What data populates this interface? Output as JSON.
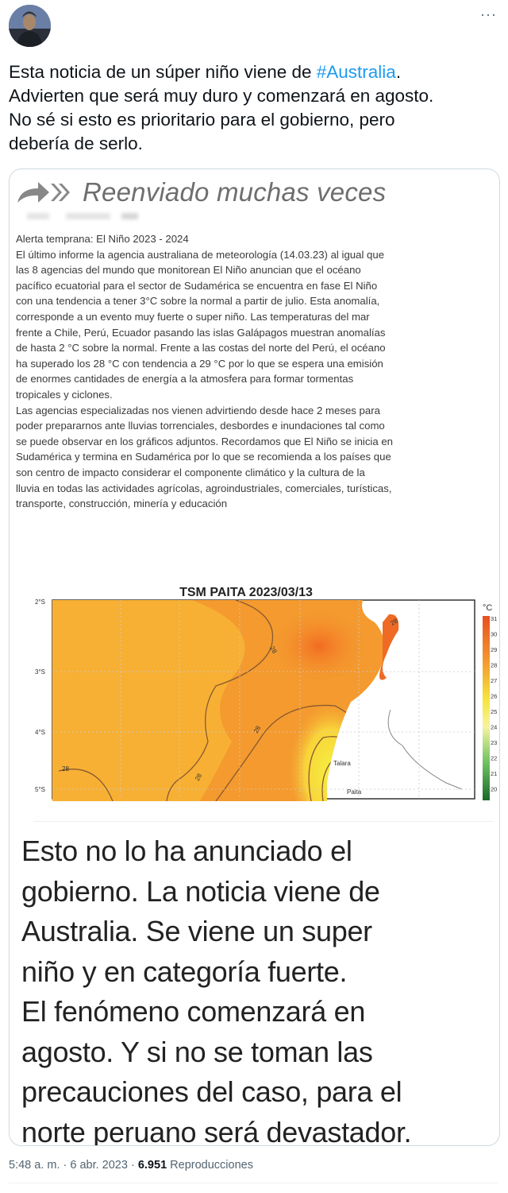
{
  "tweet": {
    "more_icon": "ellipsis-icon",
    "text_lines": [
      {
        "before": "Esta noticia de un súper niño viene de ",
        "hashtag": "#Australia",
        "after": "."
      },
      {
        "before": "Advierten que será muy duro y comenzará en agosto.",
        "hashtag": "",
        "after": ""
      },
      {
        "before": "No sé si esto es prioritario para el gobierno, pero",
        "hashtag": "",
        "after": ""
      },
      {
        "before": "debería de serlo.",
        "hashtag": "",
        "after": ""
      }
    ],
    "accent_color": "#1d9bf0"
  },
  "image": {
    "forwarded_icon": "forwarded-double-arrow-icon",
    "forwarded_label": "Reenviado muchas veces",
    "body_lines": [
      "Alerta temprana: El Niño 2023 - 2024",
      "El último informe la agencia australiana de meteorología (14.03.23) al igual que",
      "las 8 agencias del mundo que monitorean El Niño anuncian que el océano",
      "pacífico ecuatorial para el sector de Sudamérica se encuentra en fase El Niño",
      "con una tendencia a tener 3°C sobre la normal a partir de julio. Esta anomalía,",
      "corresponde a un evento muy fuerte o super niño. Las temperaturas del mar",
      "frente a Chile, Perú, Ecuador pasando las islas Galápagos muestran anomalías",
      "de hasta 2 °C sobre la normal. Frente a las costas del norte del Perú, el océano",
      "ha superado los 28 °C con tendencia a 29 °C por lo que se espera una emisión",
      "de enormes cantidades de energía a la atmosfera para formar tormentas",
      "tropicales y ciclones.",
      "Las agencias especializadas nos vienen advirtiendo desde hace 2 meses para",
      "poder prepararnos ante lluvias torrenciales, desbordes e inundaciones tal como",
      "se puede observar en los gráficos adjuntos. Recordamos que El Niño se inicia en",
      "Sudamérica y termina en Sudamérica por lo que se recomienda a los países que",
      "son centro de impacto considerar el componente climático y la cultura de la",
      "lluvia en todas las actividades agrícolas, agroindustriales, comerciales, turísticas,",
      "transporte, construcción, minería y educación"
    ],
    "map": {
      "title": "TSM PAITA 2023/03/13",
      "lat_labels": [
        "2°S",
        "3°S",
        "4°S",
        "5°S"
      ],
      "unit": "°C",
      "colorbar_ticks": [
        "31",
        "30",
        "29",
        "28",
        "27",
        "26",
        "25",
        "24",
        "23",
        "22",
        "21",
        "20"
      ],
      "contour_labels": [
        "28",
        "28",
        "28",
        "28",
        "28"
      ],
      "places": [
        "Talara",
        "Paita"
      ]
    },
    "big_text_lines": [
      "Esto no lo ha anunciado el",
      "gobierno. La noticia viene de",
      "Australia. Se viene un super",
      "niño y en categoría fuerte.",
      "El fenómeno comenzará en",
      "agosto. Y si no se toman las",
      "precauciones del caso, para el",
      "norte peruano será devastador."
    ]
  },
  "footer": {
    "time": "5:48 a. m.",
    "sep": " · ",
    "date": "6 abr. 2023",
    "views_count": "6.951",
    "views_label": " Reproducciones"
  }
}
